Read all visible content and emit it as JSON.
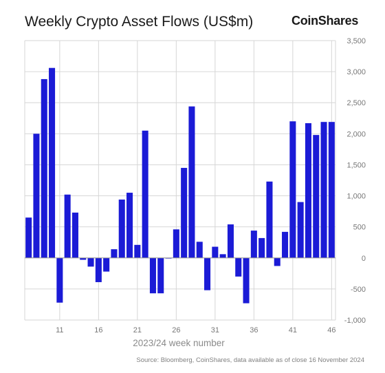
{
  "title": "Weekly Crypto Asset Flows (US$m)",
  "brand": "CoinShares",
  "source": "Source: Bloomberg, CoinShares, data available as of close 16 November 2024",
  "colors": {
    "bar": "#1b1bd6",
    "grid": "#d6d6d6",
    "axis": "#999999"
  },
  "chart_data": {
    "type": "bar",
    "xlabel": "2023/24 week number",
    "ylabel": "",
    "ylim": [
      -1000,
      3500
    ],
    "yticks": [
      -1000,
      -500,
      0,
      500,
      1000,
      1500,
      2000,
      2500,
      3000,
      3500
    ],
    "xticks": [
      11,
      16,
      21,
      26,
      31,
      36,
      41,
      46
    ],
    "y_axis_side": "right",
    "grid": true,
    "categories": [
      7,
      8,
      9,
      10,
      11,
      12,
      13,
      14,
      15,
      16,
      17,
      18,
      19,
      20,
      21,
      22,
      23,
      24,
      25,
      26,
      27,
      28,
      29,
      30,
      31,
      32,
      33,
      34,
      35,
      36,
      37,
      38,
      39,
      40,
      41,
      42,
      43,
      44,
      45,
      46
    ],
    "values": [
      650,
      2000,
      2880,
      3060,
      -720,
      1020,
      730,
      -30,
      -140,
      -390,
      -220,
      140,
      940,
      1050,
      210,
      2050,
      -570,
      -570,
      -10,
      460,
      1450,
      2440,
      260,
      -520,
      180,
      60,
      540,
      -300,
      -730,
      440,
      320,
      1230,
      -130,
      420,
      2200,
      900,
      2170,
      1980,
      2190,
      2190
    ]
  }
}
